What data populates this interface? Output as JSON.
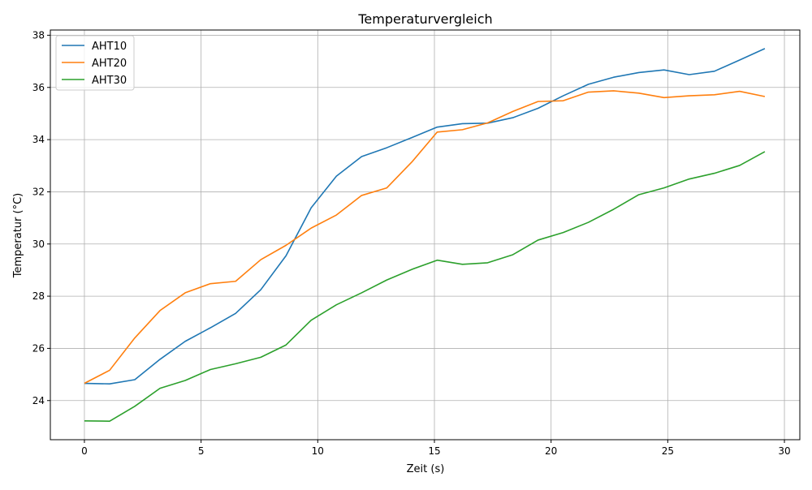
{
  "chart_data": {
    "type": "line",
    "title": "Temperaturvergleich",
    "xlabel": "Zeit (s)",
    "ylabel": "Temperatur (°C)",
    "xlim": [
      -1.46,
      30.66
    ],
    "ylim": [
      22.5,
      38.2
    ],
    "xticks": [
      0,
      5,
      10,
      15,
      20,
      25,
      30
    ],
    "yticks": [
      24,
      26,
      28,
      30,
      32,
      34,
      36,
      38
    ],
    "grid": true,
    "legend_position": "top-left",
    "x": [
      0,
      1.08,
      2.16,
      3.24,
      4.32,
      5.4,
      6.48,
      7.56,
      8.64,
      9.72,
      10.8,
      11.88,
      12.96,
      14.04,
      15.12,
      16.2,
      17.28,
      18.36,
      19.44,
      20.52,
      21.6,
      22.68,
      23.76,
      24.84,
      25.92,
      27.0,
      28.08,
      29.16
    ],
    "series": [
      {
        "name": "AHT10",
        "color": "#1f77b4",
        "values": [
          24.66,
          24.64,
          24.8,
          25.58,
          26.27,
          26.79,
          27.34,
          28.25,
          29.55,
          31.39,
          32.6,
          33.35,
          33.69,
          34.08,
          34.48,
          34.61,
          34.63,
          34.84,
          35.2,
          35.68,
          36.12,
          36.39,
          36.57,
          36.67,
          36.49,
          36.62,
          37.05,
          37.49
        ]
      },
      {
        "name": "AHT20",
        "color": "#ff7f0e",
        "values": [
          24.66,
          25.16,
          26.4,
          27.45,
          28.13,
          28.48,
          28.57,
          29.4,
          29.95,
          30.61,
          31.11,
          31.86,
          32.15,
          33.15,
          34.29,
          34.38,
          34.64,
          35.08,
          35.46,
          35.49,
          35.82,
          35.87,
          35.78,
          35.61,
          35.68,
          35.72,
          35.85,
          35.65
        ]
      },
      {
        "name": "AHT30",
        "color": "#2ca02c",
        "values": [
          23.22,
          23.21,
          23.78,
          24.47,
          24.77,
          25.19,
          25.41,
          25.66,
          26.13,
          27.08,
          27.67,
          28.13,
          28.62,
          29.03,
          29.38,
          29.22,
          29.28,
          29.59,
          30.15,
          30.44,
          30.83,
          31.33,
          31.89,
          32.15,
          32.49,
          32.71,
          33.01,
          33.54
        ]
      }
    ]
  }
}
